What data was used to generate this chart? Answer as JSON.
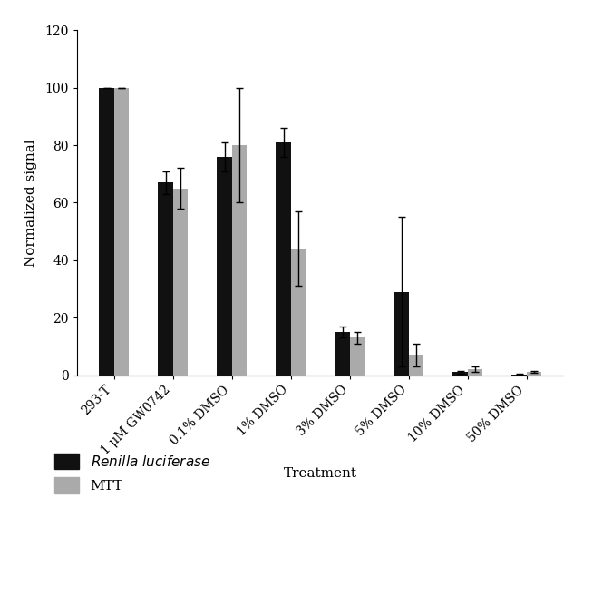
{
  "categories": [
    "293-T",
    "1 μM GW0742",
    "0.1% DMSO",
    "1% DMSO",
    "3% DMSO",
    "5% DMSO",
    "10% DMSO",
    "50% DMSO"
  ],
  "renilla_values": [
    100,
    67,
    76,
    81,
    15,
    29,
    1,
    0.3
  ],
  "renilla_errors": [
    0,
    4,
    5,
    5,
    2,
    26,
    0.5,
    0.2
  ],
  "mtt_values": [
    100,
    65,
    80,
    44,
    13,
    7,
    2,
    1
  ],
  "mtt_errors": [
    0,
    7,
    20,
    13,
    2,
    4,
    1,
    0.3
  ],
  "renilla_color": "#111111",
  "mtt_color": "#aaaaaa",
  "ylabel": "Normalized signal",
  "xlabel": "Treatment",
  "ylim": [
    0,
    120
  ],
  "yticks": [
    0,
    20,
    40,
    60,
    80,
    100,
    120
  ],
  "legend_renilla": "Renilla luciferase",
  "legend_mtt": "MTT",
  "bar_width": 0.25,
  "figsize": [
    6.54,
    6.67
  ],
  "dpi": 100
}
